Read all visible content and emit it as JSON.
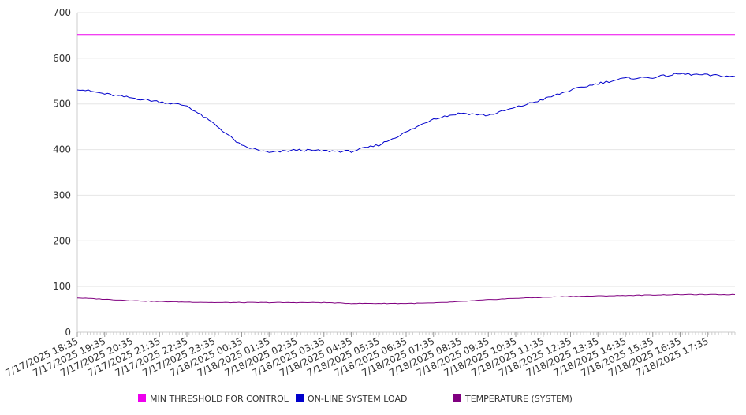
{
  "chart_data": {
    "type": "line",
    "title": "",
    "xlabel": "",
    "ylabel": "",
    "ylim": [
      0,
      700
    ],
    "yticks": [
      0,
      100,
      200,
      300,
      400,
      500,
      600,
      700
    ],
    "grid": true,
    "legend_position": "bottom",
    "x_tick_labels": [
      "7/17/2025 18:35",
      "7/17/2025 19:35",
      "7/17/2025 20:35",
      "7/17/2025 21:35",
      "7/17/2025 22:35",
      "7/17/2025 23:35",
      "7/18/2025 00:35",
      "7/18/2025 01:35",
      "7/18/2025 02:35",
      "7/18/2025 03:35",
      "7/18/2025 04:35",
      "7/18/2025 05:35",
      "7/18/2025 06:35",
      "7/18/2025 07:35",
      "7/18/2025 08:35",
      "7/18/2025 09:35",
      "7/18/2025 10:35",
      "7/18/2025 11:35",
      "7/18/2025 12:35",
      "7/18/2025 13:35",
      "7/18/2025 14:35",
      "7/18/2025 15:35",
      "7/18/2025 16:35",
      "7/18/2025 17:35"
    ],
    "x": [
      "7/17/2025 18:35",
      "7/17/2025 19:35",
      "7/17/2025 20:35",
      "7/17/2025 21:35",
      "7/17/2025 22:35",
      "7/17/2025 23:35",
      "7/18/2025 00:35",
      "7/18/2025 01:35",
      "7/18/2025 02:35",
      "7/18/2025 03:35",
      "7/18/2025 04:35",
      "7/18/2025 05:35",
      "7/18/2025 06:35",
      "7/18/2025 07:35",
      "7/18/2025 08:35",
      "7/18/2025 09:35",
      "7/18/2025 10:35",
      "7/18/2025 11:35",
      "7/18/2025 12:35",
      "7/18/2025 13:35",
      "7/18/2025 14:35",
      "7/18/2025 15:35",
      "7/18/2025 16:35",
      "7/18/2025 17:35",
      "7/18/2025 18:35"
    ],
    "series": [
      {
        "name": "MIN THRESHOLD FOR CONTROL",
        "color": "#ee00ee",
        "values": [
          652,
          652,
          652,
          652,
          652,
          652,
          652,
          652,
          652,
          652,
          652,
          652,
          652,
          652,
          652,
          652,
          652,
          652,
          652,
          652,
          652,
          652,
          652,
          652,
          652
        ]
      },
      {
        "name": "ON-LINE SYSTEM LOAD",
        "color": "#0000cc",
        "values": [
          533,
          522,
          513,
          505,
          496,
          456,
          408,
          393,
          399,
          397,
          396,
          410,
          438,
          468,
          480,
          475,
          492,
          510,
          530,
          545,
          556,
          558,
          566,
          563,
          560
        ]
      },
      {
        "name": "TEMPERATURE (SYSTEM)",
        "color": "#800080",
        "values": [
          75,
          72,
          69,
          67,
          66,
          65,
          65,
          65,
          65,
          65,
          63,
          63,
          63,
          64,
          67,
          71,
          74,
          76,
          78,
          79,
          80,
          81,
          82,
          82,
          82
        ]
      }
    ]
  }
}
